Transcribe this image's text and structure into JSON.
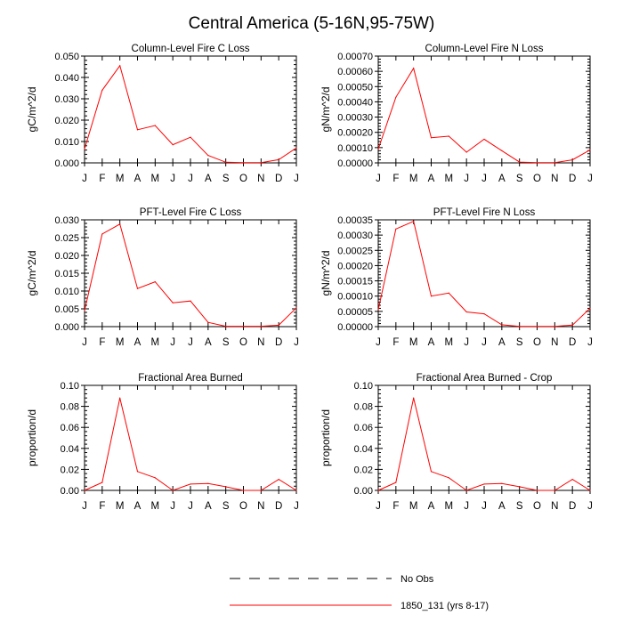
{
  "title": "Central America (5-16N,95-75W)",
  "months": [
    "J",
    "F",
    "M",
    "A",
    "M",
    "J",
    "J",
    "A",
    "S",
    "O",
    "N",
    "D",
    "J"
  ],
  "colors": {
    "model": "#ff0000",
    "axis": "#000000"
  },
  "legend": {
    "obs_label": "No Obs",
    "model_label": "1850_131 (yrs 8-17)"
  },
  "chart_data": [
    {
      "type": "line",
      "title": "Column-Level Fire C Loss",
      "ylabel": "gC/m^2/d",
      "ylim": [
        0,
        0.05
      ],
      "yticks": [
        "0.000",
        "0.010",
        "0.020",
        "0.030",
        "0.040",
        "0.050"
      ],
      "series": [
        {
          "name": "1850_131 (yrs 8-17)",
          "values": [
            0.0065,
            0.034,
            0.0455,
            0.0155,
            0.0175,
            0.0085,
            0.012,
            0.0035,
            0.0003,
            0.0001,
            0.0001,
            0.0015,
            0.007
          ]
        }
      ]
    },
    {
      "type": "line",
      "title": "Column-Level Fire N Loss",
      "ylabel": "gN/m^2/d",
      "ylim": [
        0,
        0.0007
      ],
      "yticks": [
        "0.00000",
        "0.00010",
        "0.00020",
        "0.00030",
        "0.00040",
        "0.00050",
        "0.00060",
        "0.00070"
      ],
      "series": [
        {
          "name": "1850_131 (yrs 8-17)",
          "values": [
            9e-05,
            0.00043,
            0.00062,
            0.000165,
            0.000175,
            7e-05,
            0.000155,
            8e-05,
            5e-06,
            2e-06,
            2e-06,
            2e-05,
            8.5e-05
          ]
        }
      ]
    },
    {
      "type": "line",
      "title": "PFT-Level Fire C Loss",
      "ylabel": "gC/m^2/d",
      "ylim": [
        0,
        0.03
      ],
      "yticks": [
        "0.000",
        "0.005",
        "0.010",
        "0.015",
        "0.020",
        "0.025",
        "0.030"
      ],
      "series": [
        {
          "name": "1850_131 (yrs 8-17)",
          "values": [
            0.0045,
            0.026,
            0.0288,
            0.0107,
            0.0126,
            0.0067,
            0.0072,
            0.0012,
            0.0001,
            0.0001,
            0.0001,
            0.0004,
            0.0053
          ]
        }
      ]
    },
    {
      "type": "line",
      "title": "PFT-Level Fire N Loss",
      "ylabel": "gN/m^2/d",
      "ylim": [
        0,
        0.00035
      ],
      "yticks": [
        "0.00000",
        "0.00005",
        "0.00010",
        "0.00015",
        "0.00020",
        "0.00025",
        "0.00030",
        "0.00035"
      ],
      "series": [
        {
          "name": "1850_131 (yrs 8-17)",
          "values": [
            5.5e-05,
            0.00032,
            0.000345,
            0.0001,
            0.00011,
            4.8e-05,
            4.2e-05,
            6e-06,
            1e-06,
            1e-06,
            1e-06,
            5e-06,
            6e-05
          ]
        }
      ]
    },
    {
      "type": "line",
      "title": "Fractional Area Burned",
      "ylabel": "proportion/d",
      "ylim": [
        0,
        0.1
      ],
      "yticks": [
        "0.00",
        "0.02",
        "0.04",
        "0.06",
        "0.08",
        "0.10"
      ],
      "series": [
        {
          "name": "1850_131 (yrs 8-17)",
          "values": [
            0.0,
            0.0075,
            0.088,
            0.018,
            0.012,
            0.0,
            0.006,
            0.0065,
            0.0035,
            0.0,
            0.0,
            0.0105,
            0.0
          ]
        }
      ]
    },
    {
      "type": "line",
      "title": "Fractional Area Burned - Crop",
      "ylabel": "proportion/d",
      "ylim": [
        0,
        0.1
      ],
      "yticks": [
        "0.00",
        "0.02",
        "0.04",
        "0.06",
        "0.08",
        "0.10"
      ],
      "series": [
        {
          "name": "1850_131 (yrs 8-17)",
          "values": [
            0.0,
            0.0075,
            0.088,
            0.018,
            0.012,
            0.0,
            0.006,
            0.0065,
            0.0035,
            0.0,
            0.0,
            0.0105,
            0.0
          ]
        }
      ]
    }
  ]
}
